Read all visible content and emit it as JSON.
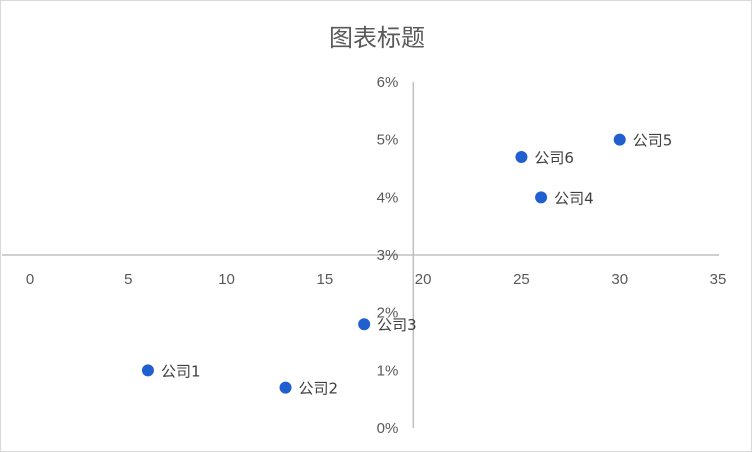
{
  "chart_data": {
    "type": "scatter",
    "title": "图表标题",
    "xlabel": "",
    "ylabel": "",
    "xlim": [
      0,
      35
    ],
    "ylim": [
      0,
      0.06
    ],
    "x_ticks": [
      "0",
      "5",
      "10",
      "15",
      "20",
      "25",
      "30",
      "35"
    ],
    "y_ticks": [
      "0%",
      "1%",
      "2%",
      "3%",
      "4%",
      "5%",
      "6%"
    ],
    "x_axis_crosses_y_at": 0.03,
    "y_axis_crosses_x_at": 19.5,
    "grid": false,
    "legend": "none",
    "marker_color": "#1f5fcf",
    "axis_color": "#bfbfbf",
    "points": [
      {
        "label": "公司1",
        "x": 6,
        "y": 0.01
      },
      {
        "label": "公司2",
        "x": 13,
        "y": 0.007
      },
      {
        "label": "公司3",
        "x": 17,
        "y": 0.018
      },
      {
        "label": "公司4",
        "x": 26,
        "y": 0.04
      },
      {
        "label": "公司5",
        "x": 30,
        "y": 0.05
      },
      {
        "label": "公司6",
        "x": 25,
        "y": 0.047
      }
    ]
  }
}
